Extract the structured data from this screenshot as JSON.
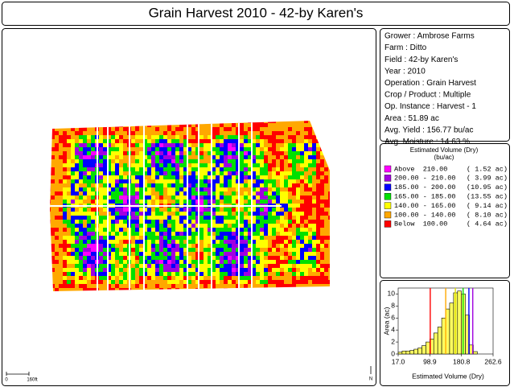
{
  "header": {
    "title": "Grain Harvest 2010 - 42-by Karen's"
  },
  "info": {
    "lines": [
      "Grower : Ambrose Farms",
      "Farm  : Ditto",
      "Field  : 42-by Karen's",
      "Year : 2010",
      "Operation  : Grain Harvest",
      "Crop / Product : Multiple",
      "Op. Instance : Harvest - 1",
      "Area : 51.89 ac",
      "Avg. Yield : 156.77 bu/ac",
      "Avg. Moisture : 14.63 %"
    ]
  },
  "legend": {
    "title": "Estimated Volume (Dry)",
    "unit": "(bu/ac)",
    "entries": [
      {
        "range": "Above  210.00",
        "area": "( 1.52 ac)",
        "color": "#ff00ff"
      },
      {
        "range": "200.00 - 210.00",
        "area": "( 3.99 ac)",
        "color": "#a000e0"
      },
      {
        "range": "185.00 - 200.00",
        "area": "(10.95 ac)",
        "color": "#0000ff"
      },
      {
        "range": "165.00 - 185.00",
        "area": "(13.55 ac)",
        "color": "#00e000"
      },
      {
        "range": "140.00 - 165.00",
        "area": "( 9.14 ac)",
        "color": "#ffff00"
      },
      {
        "range": "100.00 - 140.00",
        "area": "( 8.10 ac)",
        "color": "#ffa800"
      },
      {
        "range": "Below  100.00",
        "area": "( 4.64 ac)",
        "color": "#ff0000"
      }
    ]
  },
  "map": {
    "scale_start": "0",
    "scale_end": "160ft",
    "north": "N"
  },
  "chart_data": {
    "type": "histogram",
    "x_label": "Estimated Volume (Dry)",
    "y_label": "Area (ac)",
    "bins": [
      17.0,
      27.2,
      37.5,
      47.7,
      58.0,
      68.2,
      78.4,
      88.7,
      98.9,
      109.1,
      119.4,
      129.6,
      139.9,
      150.1,
      160.3,
      170.6,
      180.8,
      191.0,
      201.3,
      211.5,
      221.8
    ],
    "values": [
      0.3,
      0.5,
      0.5,
      0.6,
      0.8,
      1.0,
      1.4,
      2.0,
      2.5,
      3.5,
      4.5,
      6.0,
      7.5,
      8.5,
      10.2,
      10.5,
      10.0,
      6.5,
      1.5,
      0.4
    ],
    "color": "#ffff60",
    "thresholds": [
      {
        "value": 100,
        "color": "#ff0000"
      },
      {
        "value": 140,
        "color": "#ffa800"
      },
      {
        "value": 165,
        "color": "#e0e000"
      },
      {
        "value": 185,
        "color": "#00e000"
      },
      {
        "value": 200,
        "color": "#0000ff"
      },
      {
        "value": 210,
        "color": "#a000e0"
      }
    ],
    "xlim": [
      17.0,
      262.6
    ],
    "xticks": [
      {
        "value": 17.0,
        "label": "17.0"
      },
      98.9,
      180.8,
      262.6
    ],
    "ylim": [
      0,
      11
    ],
    "yticks": [
      0,
      2,
      4,
      6,
      8,
      10
    ]
  }
}
